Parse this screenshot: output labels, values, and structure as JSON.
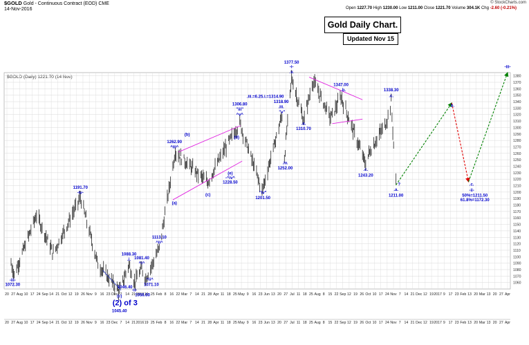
{
  "header": {
    "symbol": "$GOLD",
    "description": "Gold - Continuous Contract (EOD)",
    "exchange": "CME",
    "date": "14-Nov-2016",
    "source": "© StockCharts.com",
    "open_label": "Open",
    "open": "1227.70",
    "high_label": "High",
    "high": "1230.00",
    "low_label": "Low",
    "low": "1211.00",
    "close_label": "Close",
    "close": "1221.70",
    "volume_label": "Volume",
    "volume": "304.1K",
    "chg_label": "Chg",
    "chg": "-2.60 (-0.21%)"
  },
  "legend_label": "$GOLD (Daily) 1221.70 (14 Nov)",
  "title_box": "Gold Daily Chart.",
  "updated_box": "Updated Nov 15",
  "colors": {
    "bars": "#222222",
    "labels": "#0000cc",
    "channel": "#e020e0",
    "forecast_up": "#008000",
    "forecast_down": "#e00000",
    "grid": "#d8d8d8"
  },
  "chart_data": {
    "type": "bar",
    "y_axis_side": "right",
    "ylim": [
      1050,
      1385
    ],
    "yticks": [
      1060,
      1070,
      1080,
      1090,
      1100,
      1110,
      1120,
      1130,
      1140,
      1150,
      1160,
      1170,
      1180,
      1190,
      1200,
      1210,
      1220,
      1230,
      1240,
      1250,
      1260,
      1270,
      1280,
      1290,
      1300,
      1310,
      1320,
      1330,
      1340,
      1350,
      1360,
      1370,
      1380
    ],
    "grid": true,
    "x_ticks_top": [
      "20",
      "27",
      "Aug",
      "10",
      "17",
      "24",
      "Sep",
      "14",
      "21",
      "Oct",
      "12",
      "19",
      "26",
      "Nov",
      "9",
      "16",
      "23",
      "Dec",
      "7",
      "14",
      "21",
      "2016",
      "19",
      "25",
      "Feb",
      "8",
      "16",
      "22",
      "Mar",
      "7",
      "14",
      "21",
      "28",
      "Apr",
      "11",
      "18",
      "25",
      "May",
      "9",
      "16",
      "23",
      "Jun",
      "13",
      "20",
      "27",
      "Jul",
      "11",
      "18",
      "25",
      "Aug",
      "8",
      "15",
      "22",
      "Sep",
      "12",
      "19",
      "26",
      "Oct",
      "10",
      "17",
      "24",
      "Nov",
      "7",
      "14",
      "21",
      "Dec",
      "12",
      "19",
      "2017",
      "9",
      "17",
      "23",
      "Feb",
      "13",
      "20",
      "Mar",
      "13",
      "20",
      "27",
      "Apr"
    ],
    "x_ticks_bottom": [
      "20",
      "27",
      "Aug",
      "10",
      "17",
      "24",
      "Sep",
      "14",
      "21",
      "Oct",
      "12",
      "19",
      "26",
      "Nov",
      "9",
      "16",
      "23",
      "Dec",
      "7",
      "14",
      "21",
      "2016",
      "19",
      "25",
      "Feb",
      "8",
      "16",
      "22",
      "Mar",
      "7",
      "14",
      "21",
      "28",
      "Apr",
      "11",
      "18",
      "25",
      "May",
      "9",
      "16",
      "23",
      "Jun",
      "13",
      "20",
      "27",
      "Jul",
      "11",
      "18",
      "25",
      "Aug",
      "8",
      "15",
      "22",
      "Sep",
      "12",
      "19",
      "26",
      "Oct",
      "10",
      "17",
      "24",
      "Nov",
      "7",
      "14",
      "21",
      "Dec",
      "12",
      "19",
      "2017",
      "9",
      "17",
      "23",
      "Feb",
      "13",
      "20",
      "Mar",
      "13",
      "20",
      "27",
      "Apr"
    ],
    "pivots": [
      {
        "date": "Jul 20 2015",
        "price": 1090
      },
      {
        "date": "Jul 24 2015",
        "price": 1072.3
      },
      {
        "date": "Aug 21 2015",
        "price": 1165
      },
      {
        "date": "Sep 11 2015",
        "price": 1105
      },
      {
        "date": "Oct 15 2015",
        "price": 1191.7
      },
      {
        "date": "Nov 06 2015",
        "price": 1088
      },
      {
        "date": "Dec 03 2015",
        "price": 1046.4
      },
      {
        "date": "Dec 15 2015",
        "price": 1088.3
      },
      {
        "date": "Dec 22 2015",
        "price": 1060
      },
      {
        "date": "Dec 31 2015",
        "price": 1081.4
      },
      {
        "date": "Jan 05 2016",
        "price": 1066
      },
      {
        "date": "Jan 22 2016",
        "price": 1113.1
      },
      {
        "date": "Feb 11 2016",
        "price": 1262.9
      },
      {
        "date": "Mar 10 2016",
        "price": 1228.5
      },
      {
        "date": "Mar 23 2016",
        "price": 1215
      },
      {
        "date": "Apr 12 2016",
        "price": 1264
      },
      {
        "date": "May 02 2016",
        "price": 1306.8
      },
      {
        "date": "May 30 2016",
        "price": 1201.5
      },
      {
        "date": "Jun 24 2016",
        "price": 1318.9
      },
      {
        "date": "Jun 27 2016",
        "price": 1252
      },
      {
        "date": "Jul 06 2016",
        "price": 1377.5
      },
      {
        "date": "Jul 21 2016",
        "price": 1310.7
      },
      {
        "date": "Aug 02 2016",
        "price": 1372
      },
      {
        "date": "Aug 24 2016",
        "price": 1315
      },
      {
        "date": "Sep 06 2016",
        "price": 1347
      },
      {
        "date": "Oct 07 2016",
        "price": 1243.2
      },
      {
        "date": "Oct 11 2016",
        "price": 1260
      },
      {
        "date": "Nov 02 2016",
        "price": 1308
      },
      {
        "date": "Nov 08 2016",
        "price": 1338.3
      },
      {
        "date": "Nov 14 2016",
        "price": 1211
      }
    ],
    "forecast": [
      {
        "date": "Nov 14 2016",
        "price": 1211,
        "to_date": "Jan 23 2017",
        "to_price": 1338,
        "color": "green"
      },
      {
        "date": "Jan 23 2017",
        "price": 1338,
        "to_date": "Feb 13 2017",
        "to_price": 1216,
        "color": "red"
      },
      {
        "date": "Feb 13 2017",
        "price": 1216,
        "to_date": "Apr 03 2017",
        "to_price": 1385,
        "color": "green"
      }
    ],
    "channels": [
      {
        "from_date": "Feb 08 2016",
        "from_price": 1188,
        "to_date": "May 05 2016",
        "to_price": 1248
      },
      {
        "from_date": "Feb 15 2016",
        "from_price": 1262,
        "to_date": "May 03 2016",
        "to_price": 1303
      },
      {
        "from_date": "Jul 28 2016",
        "from_price": 1378,
        "to_date": "Oct 03 2016",
        "to_price": 1343
      },
      {
        "from_date": "Aug 26 2016",
        "from_price": 1306,
        "to_date": "Oct 03 2016",
        "to_price": 1313
      },
      {
        "from_date": "Nov 12 2015",
        "from_price": 1079,
        "to_date": "Dec 05 2015",
        "to_price": 1048
      }
    ],
    "annotations": [
      {
        "text": "-iii-",
        "date": "Jul 22 2015",
        "price": 1062,
        "color": "blue"
      },
      {
        "text": "1072.30",
        "date": "Jul 22 2015",
        "price": 1055,
        "color": "blue"
      },
      {
        "text": "1191.70",
        "date": "Oct 15 2015",
        "price": 1205,
        "color": "blue"
      },
      {
        "text": "-iv-",
        "date": "Oct 15 2015",
        "price": 1197,
        "color": "blue"
      },
      {
        "text": "1088.30",
        "date": "Dec 15 2015",
        "price": 1102,
        "color": "blue"
      },
      {
        "text": ".i.",
        "date": "Dec 15 2015",
        "price": 1094,
        "color": "blue"
      },
      {
        "text": "1081.40",
        "date": "Dec 31 2015",
        "price": 1096,
        "color": "blue"
      },
      {
        "text": "^i^",
        "date": "Dec 31 2015",
        "price": 1088,
        "color": "blue"
      },
      {
        "text": "1113.10",
        "date": "Jan 22 2016",
        "price": 1128,
        "color": "blue"
      },
      {
        "text": "^ii^",
        "date": "Jan 22 2016",
        "price": 1120,
        "color": "blue"
      },
      {
        "text": "1071.10",
        "date": "Jan 12 2016",
        "price": 1055,
        "color": "blue"
      },
      {
        "text": "^ii^",
        "date": "Jan 10 2016",
        "price": 1063,
        "color": "blue"
      },
      {
        "text": "1046.40",
        "date": "Dec 10 2015",
        "price": 1051,
        "color": "blue"
      },
      {
        "text": "-ii-",
        "date": "Dec 22 2015",
        "price": 1046,
        "color": "blue"
      },
      {
        "text": "1056.60",
        "date": "Jan 01 2016",
        "price": 1039,
        "color": "blue"
      },
      {
        "text": "(c)",
        "date": "Dec 03 2015",
        "price": 1037,
        "color": "blue"
      },
      {
        "text": "(2) of 3",
        "date": "Dec 10 2015",
        "price": 1025,
        "color": "blue",
        "big": true
      },
      {
        "text": "1045.40",
        "date": "Dec 03 2015",
        "price": 1014,
        "color": "blue"
      },
      {
        "text": "1262.90",
        "date": "Feb 10 2016",
        "price": 1276,
        "color": "blue"
      },
      {
        "text": "^iii^",
        "date": "Feb 10 2016",
        "price": 1268,
        "color": "blue"
      },
      {
        "text": "(b)",
        "date": "Feb 26 2016",
        "price": 1287,
        "color": "blue"
      },
      {
        "text": "(a)",
        "date": "Feb 10 2016",
        "price": 1181,
        "color": "blue"
      },
      {
        "text": "(c)",
        "date": "Mar 23 2016",
        "price": 1194,
        "color": "blue"
      },
      {
        "text": "(e)",
        "date": "Apr 20 2016",
        "price": 1227,
        "color": "blue"
      },
      {
        "text": "-^iv^",
        "date": "Apr 20 2016",
        "price": 1220,
        "color": "blue"
      },
      {
        "text": "1228.50",
        "date": "Apr 20 2016",
        "price": 1213,
        "color": "blue"
      },
      {
        "text": "(d)",
        "date": "Apr 28 2016",
        "price": 1283,
        "color": "blue"
      },
      {
        "text": "1306.80",
        "date": "May 02 2016",
        "price": 1334,
        "color": "blue"
      },
      {
        "text": "\"iii\"",
        "date": "May 02 2016",
        "price": 1326,
        "color": "blue"
      },
      {
        "text": "^v^",
        "date": "May 02 2016",
        "price": 1318,
        "color": "blue"
      },
      {
        "text": "\"iv\"",
        "date": "May 31 2016",
        "price": 1197,
        "color": "blue"
      },
      {
        "text": "1201.50",
        "date": "May 31 2016",
        "price": 1189,
        "color": "blue"
      },
      {
        "text": ".iii.=6.25.i.=1314.90",
        "date": "Jun 03 2016",
        "price": 1346,
        "color": "blue"
      },
      {
        "text": "1318.90",
        "date": "Jun 23 2016",
        "price": 1338,
        "color": "blue"
      },
      {
        "text": ".iii.",
        "date": "Jun 23 2016",
        "price": 1330,
        "color": "blue"
      },
      {
        "text": "\"v\"",
        "date": "Jun 24 2016",
        "price": 1322,
        "color": "blue"
      },
      {
        "text": ".iv.",
        "date": "Jun 28 2016",
        "price": 1243,
        "color": "blue"
      },
      {
        "text": "1252.00",
        "date": "Jun 28 2016",
        "price": 1235,
        "color": "blue"
      },
      {
        "text": "1377.50",
        "date": "Jul 06 2016",
        "price": 1399,
        "color": "blue"
      },
      {
        "text": "-i-",
        "date": "Jul 06 2016",
        "price": 1392,
        "color": "blue"
      },
      {
        "text": ".v.",
        "date": "Jul 06 2016",
        "price": 1384,
        "color": "blue"
      },
      {
        "text": ".a.",
        "date": "Jul 21 2016",
        "price": 1304,
        "color": "blue"
      },
      {
        "text": "1310.70",
        "date": "Jul 21 2016",
        "price": 1296,
        "color": "blue"
      },
      {
        "text": "1347.00",
        "date": "Sep 06 2016",
        "price": 1364,
        "color": "blue"
      },
      {
        "text": ".b.",
        "date": "Sep 09 2016",
        "price": 1356,
        "color": "blue"
      },
      {
        "text": ".c.",
        "date": "Oct 07 2016",
        "price": 1233,
        "color": "blue"
      },
      {
        "text": "1243.20",
        "date": "Oct 07 2016",
        "price": 1224,
        "color": "blue"
      },
      {
        "text": "1338.30",
        "date": "Nov 08 2016",
        "price": 1356,
        "color": "blue"
      },
      {
        "text": ".c.",
        "date": "Nov 08 2016",
        "price": 1347,
        "color": "blue"
      },
      {
        "text": ".a.",
        "date": "Nov 14 2016",
        "price": 1202,
        "color": "blue"
      },
      {
        "text": "1211.00",
        "date": "Nov 14 2016",
        "price": 1193,
        "color": "blue"
      },
      {
        "text": "?",
        "date": "Nov 18 2016",
        "price": 1210,
        "color": "blue"
      },
      {
        "text": "b.",
        "date": "Jan 24 2017",
        "price": 1332,
        "color": "blue"
      },
      {
        "text": ".c.",
        "date": "Feb 17 2017",
        "price": 1210,
        "color": "blue"
      },
      {
        "text": "-ii-",
        "date": "Feb 17 2017",
        "price": 1201,
        "color": "blue"
      },
      {
        "text": "50%=1211.50",
        "date": "Feb 21 2017",
        "price": 1193,
        "color": "blue"
      },
      {
        "text": "61.8%=1172.30",
        "date": "Feb 21 2017",
        "price": 1186,
        "color": "blue"
      },
      {
        "text": "-iii-",
        "date": "Apr 03 2017",
        "price": 1392,
        "color": "blue"
      }
    ]
  }
}
